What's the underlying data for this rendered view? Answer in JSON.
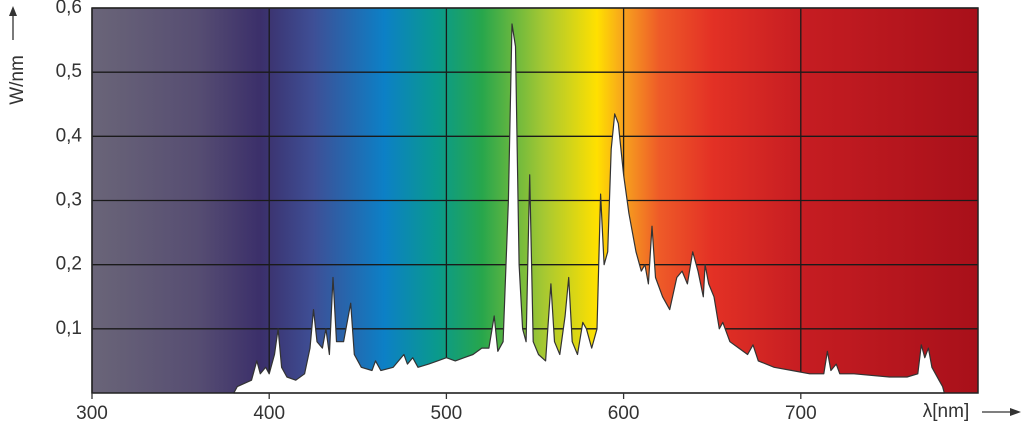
{
  "chart_data": {
    "type": "area",
    "y_label": "W/nm",
    "x_label": "λ[nm]",
    "xlim": [
      300,
      800
    ],
    "xticks": [
      300,
      400,
      500,
      600,
      700
    ],
    "ylim": [
      0,
      0.6
    ],
    "yticks": [
      {
        "value": 0.1,
        "label": "0,1"
      },
      {
        "value": 0.2,
        "label": "0,2"
      },
      {
        "value": 0.3,
        "label": "0,3"
      },
      {
        "value": 0.4,
        "label": "0,4"
      },
      {
        "value": 0.5,
        "label": "0,5"
      },
      {
        "value": 0.6,
        "label": "0,6"
      }
    ],
    "grid": true,
    "color": "#ffffff",
    "x": [
      380,
      382,
      390,
      393,
      395,
      398,
      400,
      403,
      405,
      407,
      410,
      415,
      420,
      423,
      425,
      427,
      430,
      432,
      434,
      436,
      438,
      442,
      446,
      448,
      452,
      458,
      460,
      463,
      470,
      476,
      478,
      481,
      484,
      490,
      495,
      500,
      505,
      510,
      515,
      520,
      524,
      527,
      529,
      532,
      535,
      537,
      539,
      541,
      543,
      545,
      547,
      549,
      552,
      556,
      559,
      561,
      564,
      567,
      569,
      571,
      574,
      577,
      579,
      582,
      585,
      587,
      589,
      591,
      593,
      595,
      597,
      600,
      603,
      607,
      610,
      612,
      614,
      616,
      618,
      622,
      626,
      630,
      633,
      636,
      639,
      642,
      645,
      646,
      648,
      651,
      654,
      656,
      660,
      665,
      670,
      673,
      676,
      685,
      695,
      705,
      713,
      715,
      717,
      720,
      722,
      730,
      750,
      760,
      766,
      768,
      770,
      772,
      774,
      778,
      780,
      781
    ],
    "values": [
      0,
      0.01,
      0.02,
      0.05,
      0.03,
      0.04,
      0.03,
      0.06,
      0.1,
      0.04,
      0.025,
      0.02,
      0.03,
      0.07,
      0.13,
      0.08,
      0.07,
      0.1,
      0.06,
      0.18,
      0.08,
      0.08,
      0.14,
      0.06,
      0.04,
      0.035,
      0.05,
      0.035,
      0.04,
      0.06,
      0.045,
      0.055,
      0.04,
      0.045,
      0.05,
      0.055,
      0.05,
      0.055,
      0.06,
      0.07,
      0.07,
      0.12,
      0.065,
      0.08,
      0.3,
      0.575,
      0.54,
      0.2,
      0.1,
      0.08,
      0.34,
      0.08,
      0.06,
      0.05,
      0.17,
      0.08,
      0.06,
      0.12,
      0.18,
      0.08,
      0.06,
      0.11,
      0.1,
      0.07,
      0.1,
      0.31,
      0.2,
      0.22,
      0.38,
      0.435,
      0.42,
      0.34,
      0.28,
      0.22,
      0.19,
      0.2,
      0.17,
      0.26,
      0.18,
      0.15,
      0.13,
      0.18,
      0.19,
      0.17,
      0.22,
      0.19,
      0.15,
      0.2,
      0.17,
      0.15,
      0.1,
      0.11,
      0.08,
      0.07,
      0.06,
      0.075,
      0.05,
      0.04,
      0.035,
      0.03,
      0.03,
      0.065,
      0.035,
      0.045,
      0.03,
      0.03,
      0.025,
      0.025,
      0.03,
      0.075,
      0.055,
      0.07,
      0.04,
      0.02,
      0.01,
      0
    ]
  }
}
